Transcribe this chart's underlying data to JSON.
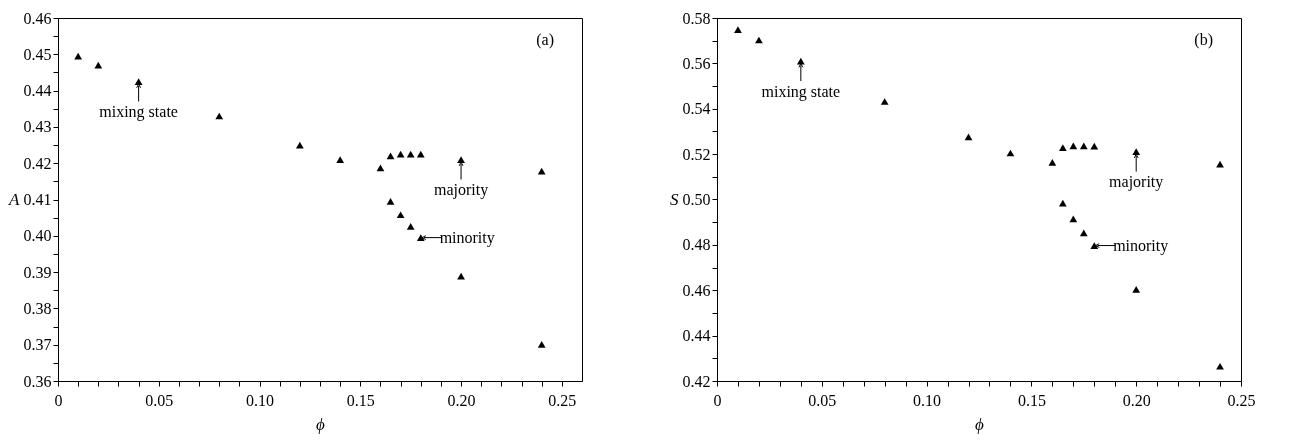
{
  "chart_data": [
    {
      "type": "scatter",
      "xlabel": "ϕ",
      "ylabel": "A",
      "marker": "triangle",
      "x": [
        0.01,
        0.02,
        0.04,
        0.08,
        0.12,
        0.14,
        0.16,
        0.165,
        0.17,
        0.175,
        0.18,
        0.2,
        0.24,
        0.165,
        0.17,
        0.175,
        0.18,
        0.2,
        0.24
      ],
      "series": [
        {
          "color": "#000000",
          "values": [
            0.4495,
            0.447,
            0.4425,
            0.433,
            0.425,
            0.421,
            0.4187,
            0.422,
            0.4225,
            0.4225,
            0.4225,
            0.421,
            0.4178,
            0.4095,
            0.4058,
            0.4026,
            0.3995,
            0.3889,
            0.3701
          ]
        }
      ],
      "xlim": [
        0,
        0.26
      ],
      "xticks": [
        0,
        {
          "value": 0.01,
          "label": null
        },
        {
          "value": 0.02,
          "label": null
        },
        {
          "value": 0.03,
          "label": null
        },
        {
          "value": 0.04,
          "label": null
        },
        0.05,
        {
          "value": 0.06,
          "label": null
        },
        {
          "value": 0.07,
          "label": null
        },
        {
          "value": 0.08,
          "label": null
        },
        {
          "value": 0.09,
          "label": null
        },
        {
          "value": 0.1,
          "label": "0.10"
        },
        {
          "value": 0.11,
          "label": null
        },
        {
          "value": 0.12,
          "label": null
        },
        {
          "value": 0.13,
          "label": null
        },
        {
          "value": 0.14,
          "label": null
        },
        0.15,
        {
          "value": 0.16,
          "label": null
        },
        {
          "value": 0.17,
          "label": null
        },
        {
          "value": 0.18,
          "label": null
        },
        {
          "value": 0.19,
          "label": null
        },
        {
          "value": 0.2,
          "label": "0.20"
        },
        {
          "value": 0.21,
          "label": null
        },
        {
          "value": 0.22,
          "label": null
        },
        {
          "value": 0.23,
          "label": null
        },
        {
          "value": 0.24,
          "label": null
        },
        0.25
      ],
      "ylim": [
        0.36,
        0.46
      ],
      "yticks": [
        0.36,
        {
          "value": 0.365,
          "label": null
        },
        0.37,
        {
          "value": 0.375,
          "label": null
        },
        0.38,
        {
          "value": 0.385,
          "label": null
        },
        0.39,
        {
          "value": 0.395,
          "label": null
        },
        {
          "value": 0.4,
          "label": "0.40"
        },
        {
          "value": 0.405,
          "label": null
        },
        0.41,
        {
          "value": 0.415,
          "label": null
        },
        0.42,
        {
          "value": 0.425,
          "label": null
        },
        0.43,
        {
          "value": 0.435,
          "label": null
        },
        0.44,
        {
          "value": 0.445,
          "label": null
        },
        0.45,
        {
          "value": 0.455,
          "label": null
        },
        0.46
      ],
      "grid": false,
      "annotations": [
        "(a)",
        {
          "text": "mixing state",
          "x": 0.04,
          "y": 0.4425
        },
        {
          "text": "majority",
          "x": 0.2,
          "y": 0.421
        },
        {
          "text": "minority",
          "x": 0.18,
          "y": 0.3995
        }
      ]
    },
    {
      "type": "scatter",
      "xlabel": "ϕ",
      "ylabel": "S",
      "marker": "triangle",
      "x": [
        0.01,
        0.02,
        0.04,
        0.08,
        0.12,
        0.14,
        0.16,
        0.165,
        0.17,
        0.175,
        0.18,
        0.2,
        0.24,
        0.165,
        0.17,
        0.175,
        0.18,
        0.2,
        0.24
      ],
      "series": [
        {
          "color": "#000000",
          "values": [
            0.5749,
            0.5703,
            0.561,
            0.5432,
            0.5276,
            0.5205,
            0.5164,
            0.5229,
            0.5236,
            0.5236,
            0.5235,
            0.5211,
            0.5156,
            0.4984,
            0.4915,
            0.4853,
            0.4797,
            0.4604,
            0.4265
          ]
        }
      ],
      "xlim": [
        0,
        0.25
      ],
      "xticks": [
        0,
        {
          "value": 0.01,
          "label": null
        },
        {
          "value": 0.02,
          "label": null
        },
        {
          "value": 0.03,
          "label": null
        },
        {
          "value": 0.04,
          "label": null
        },
        0.05,
        {
          "value": 0.06,
          "label": null
        },
        {
          "value": 0.07,
          "label": null
        },
        {
          "value": 0.08,
          "label": null
        },
        {
          "value": 0.09,
          "label": null
        },
        {
          "value": 0.1,
          "label": "0.10"
        },
        {
          "value": 0.11,
          "label": null
        },
        {
          "value": 0.12,
          "label": null
        },
        {
          "value": 0.13,
          "label": null
        },
        {
          "value": 0.14,
          "label": null
        },
        0.15,
        {
          "value": 0.16,
          "label": null
        },
        {
          "value": 0.17,
          "label": null
        },
        {
          "value": 0.18,
          "label": null
        },
        {
          "value": 0.19,
          "label": null
        },
        {
          "value": 0.2,
          "label": "0.20"
        },
        {
          "value": 0.21,
          "label": null
        },
        {
          "value": 0.22,
          "label": null
        },
        {
          "value": 0.23,
          "label": null
        },
        {
          "value": 0.24,
          "label": null
        },
        0.25
      ],
      "ylim": [
        0.42,
        0.58
      ],
      "yticks": [
        0.42,
        {
          "value": 0.43,
          "label": null
        },
        0.44,
        {
          "value": 0.45,
          "label": null
        },
        0.46,
        {
          "value": 0.47,
          "label": null
        },
        0.48,
        {
          "value": 0.49,
          "label": null
        },
        {
          "value": 0.5,
          "label": "0.50"
        },
        {
          "value": 0.51,
          "label": null
        },
        0.52,
        {
          "value": 0.53,
          "label": null
        },
        0.54,
        {
          "value": 0.55,
          "label": null
        },
        0.56,
        {
          "value": 0.57,
          "label": null
        },
        0.58
      ],
      "grid": false,
      "annotations": [
        "(b)",
        {
          "text": "mixing state",
          "x": 0.04,
          "y": 0.561
        },
        {
          "text": "majority",
          "x": 0.2,
          "y": 0.5211
        },
        {
          "text": "minority",
          "x": 0.18,
          "y": 0.4797
        }
      ]
    }
  ]
}
